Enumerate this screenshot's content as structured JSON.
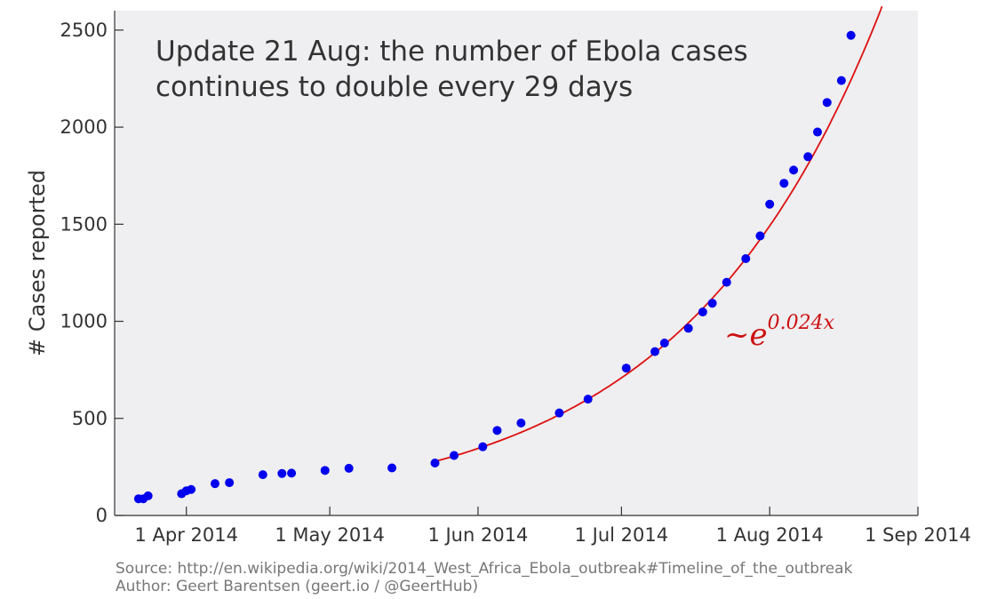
{
  "chart_data": {
    "type": "scatter",
    "title_lines": [
      "Update 21 Aug: the number of Ebola cases",
      "continues to double every 29 days"
    ],
    "xlabel": "",
    "ylabel": "# Cases reported",
    "x_axis": "date",
    "xlim": [
      "2014-03-17",
      "2014-09-01"
    ],
    "ylim": [
      0,
      2600
    ],
    "yticks": [
      0,
      500,
      1000,
      1500,
      2000,
      2500
    ],
    "xticks": [
      {
        "date": "2014-04-01",
        "label": "1 Apr 2014"
      },
      {
        "date": "2014-05-01",
        "label": "1 May 2014"
      },
      {
        "date": "2014-06-01",
        "label": "1 Jun 2014"
      },
      {
        "date": "2014-07-01",
        "label": "1 Jul 2014"
      },
      {
        "date": "2014-08-01",
        "label": "1 Aug 2014"
      },
      {
        "date": "2014-09-01",
        "label": "1 Sep 2014"
      }
    ],
    "grid": false,
    "point_color": "#0000ee",
    "fit_color": "#dd1111",
    "background": "#efeef0",
    "points": [
      {
        "x": "2014-03-22",
        "y": 86
      },
      {
        "x": "2014-03-23",
        "y": 86
      },
      {
        "x": "2014-03-24",
        "y": 101
      },
      {
        "x": "2014-03-31",
        "y": 112
      },
      {
        "x": "2014-04-01",
        "y": 127
      },
      {
        "x": "2014-04-02",
        "y": 134
      },
      {
        "x": "2014-04-07",
        "y": 164
      },
      {
        "x": "2014-04-10",
        "y": 169
      },
      {
        "x": "2014-04-17",
        "y": 210
      },
      {
        "x": "2014-04-21",
        "y": 216
      },
      {
        "x": "2014-04-23",
        "y": 218
      },
      {
        "x": "2014-04-30",
        "y": 232
      },
      {
        "x": "2014-05-05",
        "y": 243
      },
      {
        "x": "2014-05-14",
        "y": 245
      },
      {
        "x": "2014-05-23",
        "y": 270
      },
      {
        "x": "2014-05-27",
        "y": 309
      },
      {
        "x": "2014-06-02",
        "y": 354
      },
      {
        "x": "2014-06-05",
        "y": 438
      },
      {
        "x": "2014-06-10",
        "y": 476
      },
      {
        "x": "2014-06-18",
        "y": 528
      },
      {
        "x": "2014-06-24",
        "y": 599
      },
      {
        "x": "2014-07-02",
        "y": 759
      },
      {
        "x": "2014-07-08",
        "y": 844
      },
      {
        "x": "2014-07-10",
        "y": 888
      },
      {
        "x": "2014-07-15",
        "y": 964
      },
      {
        "x": "2014-07-18",
        "y": 1048
      },
      {
        "x": "2014-07-20",
        "y": 1093
      },
      {
        "x": "2014-07-23",
        "y": 1201
      },
      {
        "x": "2014-07-27",
        "y": 1323
      },
      {
        "x": "2014-07-30",
        "y": 1440
      },
      {
        "x": "2014-08-01",
        "y": 1603
      },
      {
        "x": "2014-08-04",
        "y": 1711
      },
      {
        "x": "2014-08-06",
        "y": 1779
      },
      {
        "x": "2014-08-09",
        "y": 1848
      },
      {
        "x": "2014-08-11",
        "y": 1975
      },
      {
        "x": "2014-08-13",
        "y": 2127
      },
      {
        "x": "2014-08-16",
        "y": 2240
      },
      {
        "x": "2014-08-18",
        "y": 2473
      }
    ],
    "fit": {
      "formula": "~e^(0.024x)",
      "x_start": "2014-05-23",
      "y_start": 278,
      "rate_per_day": 0.024,
      "x_end": "2014-09-01"
    }
  },
  "footer": {
    "source": "Source: http://en.wikipedia.org/wiki/2014_West_Africa_Ebola_outbreak#Timeline_of_the_outbreak",
    "author": "Author: Geert Barentsen (geert.io / @GeertHub)"
  }
}
